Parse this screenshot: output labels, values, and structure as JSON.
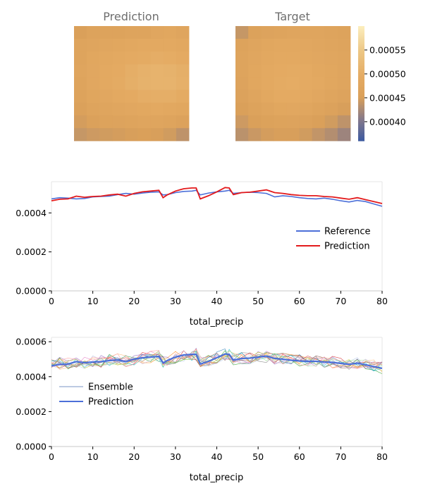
{
  "chart_data": [
    {
      "type": "heatmap",
      "title": "Prediction",
      "rows": 9,
      "cols": 9,
      "values": [
        [
          0.000452,
          0.000462,
          0.000462,
          0.000462,
          0.000466,
          0.000468,
          0.000476,
          0.000478,
          0.000472
        ],
        [
          0.000466,
          0.000472,
          0.000476,
          0.000478,
          0.000482,
          0.000486,
          0.000488,
          0.000488,
          0.000484
        ],
        [
          0.000468,
          0.000478,
          0.000482,
          0.000486,
          0.00049,
          0.000494,
          0.000498,
          0.000496,
          0.00049
        ],
        [
          0.00047,
          0.00048,
          0.000486,
          0.000492,
          0.0005,
          0.000506,
          0.00051,
          0.000508,
          0.000502
        ],
        [
          0.000468,
          0.00048,
          0.000486,
          0.000494,
          0.000502,
          0.000508,
          0.00051,
          0.00051,
          0.000504
        ],
        [
          0.000462,
          0.000474,
          0.00048,
          0.000486,
          0.000492,
          0.000498,
          0.0005,
          0.0005,
          0.000494
        ],
        [
          0.000456,
          0.000466,
          0.000472,
          0.000476,
          0.00048,
          0.000484,
          0.000486,
          0.000484,
          0.000478
        ],
        [
          0.000448,
          0.000456,
          0.000462,
          0.000464,
          0.000468,
          0.00047,
          0.00047,
          0.000468,
          0.00046
        ],
        [
          0.00044,
          0.000444,
          0.000446,
          0.000448,
          0.00045,
          0.000452,
          0.00045,
          0.000446,
          0.000436
        ]
      ]
    },
    {
      "type": "heatmap",
      "title": "Target",
      "rows": 9,
      "cols": 9,
      "values": [
        [
          0.00044,
          0.000458,
          0.000464,
          0.000468,
          0.00047,
          0.000472,
          0.00047,
          0.000468,
          0.000462
        ],
        [
          0.000462,
          0.000472,
          0.000478,
          0.000482,
          0.000482,
          0.00048,
          0.000476,
          0.000472,
          0.000468
        ],
        [
          0.000466,
          0.000476,
          0.000482,
          0.000488,
          0.000488,
          0.000484,
          0.00048,
          0.000476,
          0.00047
        ],
        [
          0.000466,
          0.000478,
          0.000486,
          0.000492,
          0.000494,
          0.00049,
          0.000484,
          0.000478,
          0.000472
        ],
        [
          0.000464,
          0.000478,
          0.000488,
          0.000494,
          0.000496,
          0.000492,
          0.000486,
          0.000478,
          0.00047
        ],
        [
          0.00046,
          0.000472,
          0.000484,
          0.00049,
          0.000492,
          0.000488,
          0.00048,
          0.000472,
          0.000464
        ],
        [
          0.000452,
          0.000462,
          0.000472,
          0.000478,
          0.00048,
          0.000476,
          0.000468,
          0.00046,
          0.00045
        ],
        [
          0.000444,
          0.000452,
          0.000458,
          0.000462,
          0.000464,
          0.00046,
          0.000452,
          0.000446,
          0.000436
        ],
        [
          0.000434,
          0.000442,
          0.000448,
          0.00045,
          0.00045,
          0.000446,
          0.000438,
          0.00043,
          0.000418
        ]
      ]
    },
    {
      "type": "colorbar",
      "vmin": 0.00036,
      "vmax": 0.0006,
      "ticks": [
        0.0004,
        0.00045,
        0.0005,
        0.00055
      ],
      "tick_labels": [
        "0.00040",
        "0.00045",
        "0.00050",
        "0.00055"
      ]
    },
    {
      "type": "line",
      "xlabel": "total_precip",
      "xlim": [
        0,
        80
      ],
      "ylim": [
        0,
        0.00056
      ],
      "xticks": [
        0,
        10,
        20,
        30,
        40,
        50,
        60,
        70,
        80
      ],
      "yticks": [
        0.0,
        0.0002,
        0.0004
      ],
      "ytick_labels": [
        "0.0000",
        "0.0002",
        "0.0004"
      ],
      "legend_position": "right",
      "series": [
        {
          "name": "Reference",
          "color": "#4c6fd8",
          "x": [
            0,
            2,
            4,
            6,
            8,
            10,
            12,
            14,
            16,
            18,
            20,
            22,
            24,
            26,
            27,
            28,
            30,
            32,
            34,
            35,
            36,
            38,
            40,
            42,
            43,
            44,
            46,
            48,
            50,
            52,
            54,
            56,
            58,
            60,
            62,
            64,
            66,
            68,
            70,
            72,
            74,
            76,
            78,
            80
          ],
          "values": [
            0.000472,
            0.000478,
            0.000476,
            0.000472,
            0.000474,
            0.000482,
            0.000484,
            0.000486,
            0.000494,
            0.0005,
            0.000496,
            0.000502,
            0.000506,
            0.000508,
            0.000492,
            0.000494,
            0.000504,
            0.00051,
            0.000512,
            0.000516,
            0.000492,
            0.000502,
            0.000508,
            0.000512,
            0.000516,
            0.0005,
            0.000504,
            0.000506,
            0.000504,
            0.0005,
            0.000482,
            0.000488,
            0.000484,
            0.000478,
            0.000474,
            0.000472,
            0.000476,
            0.00047,
            0.000462,
            0.000456,
            0.000464,
            0.000458,
            0.000446,
            0.000434
          ]
        },
        {
          "name": "Prediction",
          "color": "#e31a1c",
          "x": [
            0,
            2,
            4,
            6,
            8,
            10,
            12,
            14,
            16,
            18,
            20,
            22,
            24,
            26,
            27,
            28,
            30,
            32,
            34,
            35,
            36,
            38,
            40,
            42,
            43,
            44,
            46,
            48,
            50,
            52,
            54,
            56,
            58,
            60,
            62,
            64,
            66,
            68,
            70,
            72,
            74,
            76,
            78,
            80
          ],
          "values": [
            0.000462,
            0.00047,
            0.000472,
            0.000486,
            0.00048,
            0.000484,
            0.000486,
            0.000492,
            0.000496,
            0.000486,
            0.0005,
            0.000508,
            0.000512,
            0.000516,
            0.000478,
            0.000492,
            0.000512,
            0.000524,
            0.000528,
            0.000528,
            0.000472,
            0.000488,
            0.000508,
            0.00053,
            0.000528,
            0.000494,
            0.000504,
            0.000506,
            0.000512,
            0.000518,
            0.000504,
            0.0005,
            0.000494,
            0.00049,
            0.000488,
            0.000488,
            0.000484,
            0.000482,
            0.000476,
            0.00047,
            0.000478,
            0.000468,
            0.000458,
            0.000448
          ]
        }
      ]
    },
    {
      "type": "line",
      "xlabel": "total_precip",
      "xlim": [
        0,
        80
      ],
      "ylim": [
        0,
        0.000625
      ],
      "xticks": [
        0,
        10,
        20,
        30,
        40,
        50,
        60,
        70,
        80
      ],
      "yticks": [
        0.0,
        0.0002,
        0.0004,
        0.0006
      ],
      "ytick_labels": [
        "0.0000",
        "0.0002",
        "0.0004",
        "0.0006"
      ],
      "legend_position": "left",
      "ensemble_count": 15,
      "ensemble_noise": 3.5e-05,
      "ensemble_colors": [
        "#1f77b4",
        "#ff7f0e",
        "#2ca02c",
        "#d62728",
        "#9467bd",
        "#8c564b",
        "#e377c2",
        "#7f7f7f",
        "#bcbd22",
        "#17becf",
        "#aec7e8",
        "#ffbb78",
        "#98df8a",
        "#ff9896",
        "#c5b0d5"
      ],
      "series": [
        {
          "name": "Ensemble",
          "color": "#4c72b0",
          "x": [
            0,
            2,
            4,
            6,
            8,
            10,
            12,
            14,
            16,
            18,
            20,
            22,
            24,
            26,
            27,
            28,
            30,
            32,
            34,
            35,
            36,
            38,
            40,
            42,
            43,
            44,
            46,
            48,
            50,
            52,
            54,
            56,
            58,
            60,
            62,
            64,
            66,
            68,
            70,
            72,
            74,
            76,
            78,
            80
          ],
          "values": [
            0.00047,
            0.000476,
            0.000478,
            0.000484,
            0.000482,
            0.000486,
            0.000488,
            0.000494,
            0.000498,
            0.000492,
            0.000502,
            0.000508,
            0.000512,
            0.000516,
            0.000486,
            0.000496,
            0.000512,
            0.000522,
            0.000526,
            0.000528,
            0.000484,
            0.000496,
            0.00051,
            0.000526,
            0.000524,
            0.0005,
            0.000506,
            0.000508,
            0.000512,
            0.000516,
            0.000504,
            0.0005,
            0.000496,
            0.000492,
            0.00049,
            0.000488,
            0.000486,
            0.000484,
            0.000478,
            0.000472,
            0.000478,
            0.00047,
            0.000462,
            0.000452
          ]
        },
        {
          "name": "Prediction",
          "color": "#4c6fd8",
          "x": [
            0,
            2,
            4,
            6,
            8,
            10,
            12,
            14,
            16,
            18,
            20,
            22,
            24,
            26,
            27,
            28,
            30,
            32,
            34,
            35,
            36,
            38,
            40,
            42,
            43,
            44,
            46,
            48,
            50,
            52,
            54,
            56,
            58,
            60,
            62,
            64,
            66,
            68,
            70,
            72,
            74,
            76,
            78,
            80
          ],
          "values": [
            0.000462,
            0.00047,
            0.000472,
            0.000486,
            0.00048,
            0.000484,
            0.000486,
            0.000492,
            0.000496,
            0.000486,
            0.0005,
            0.000508,
            0.000512,
            0.000516,
            0.000478,
            0.000492,
            0.000512,
            0.000524,
            0.000528,
            0.000528,
            0.000472,
            0.000488,
            0.000508,
            0.00053,
            0.000528,
            0.000494,
            0.000504,
            0.000506,
            0.000512,
            0.000518,
            0.000504,
            0.0005,
            0.000494,
            0.00049,
            0.000488,
            0.000488,
            0.000484,
            0.000482,
            0.000476,
            0.00047,
            0.000478,
            0.000468,
            0.000458,
            0.000448
          ]
        }
      ]
    }
  ]
}
